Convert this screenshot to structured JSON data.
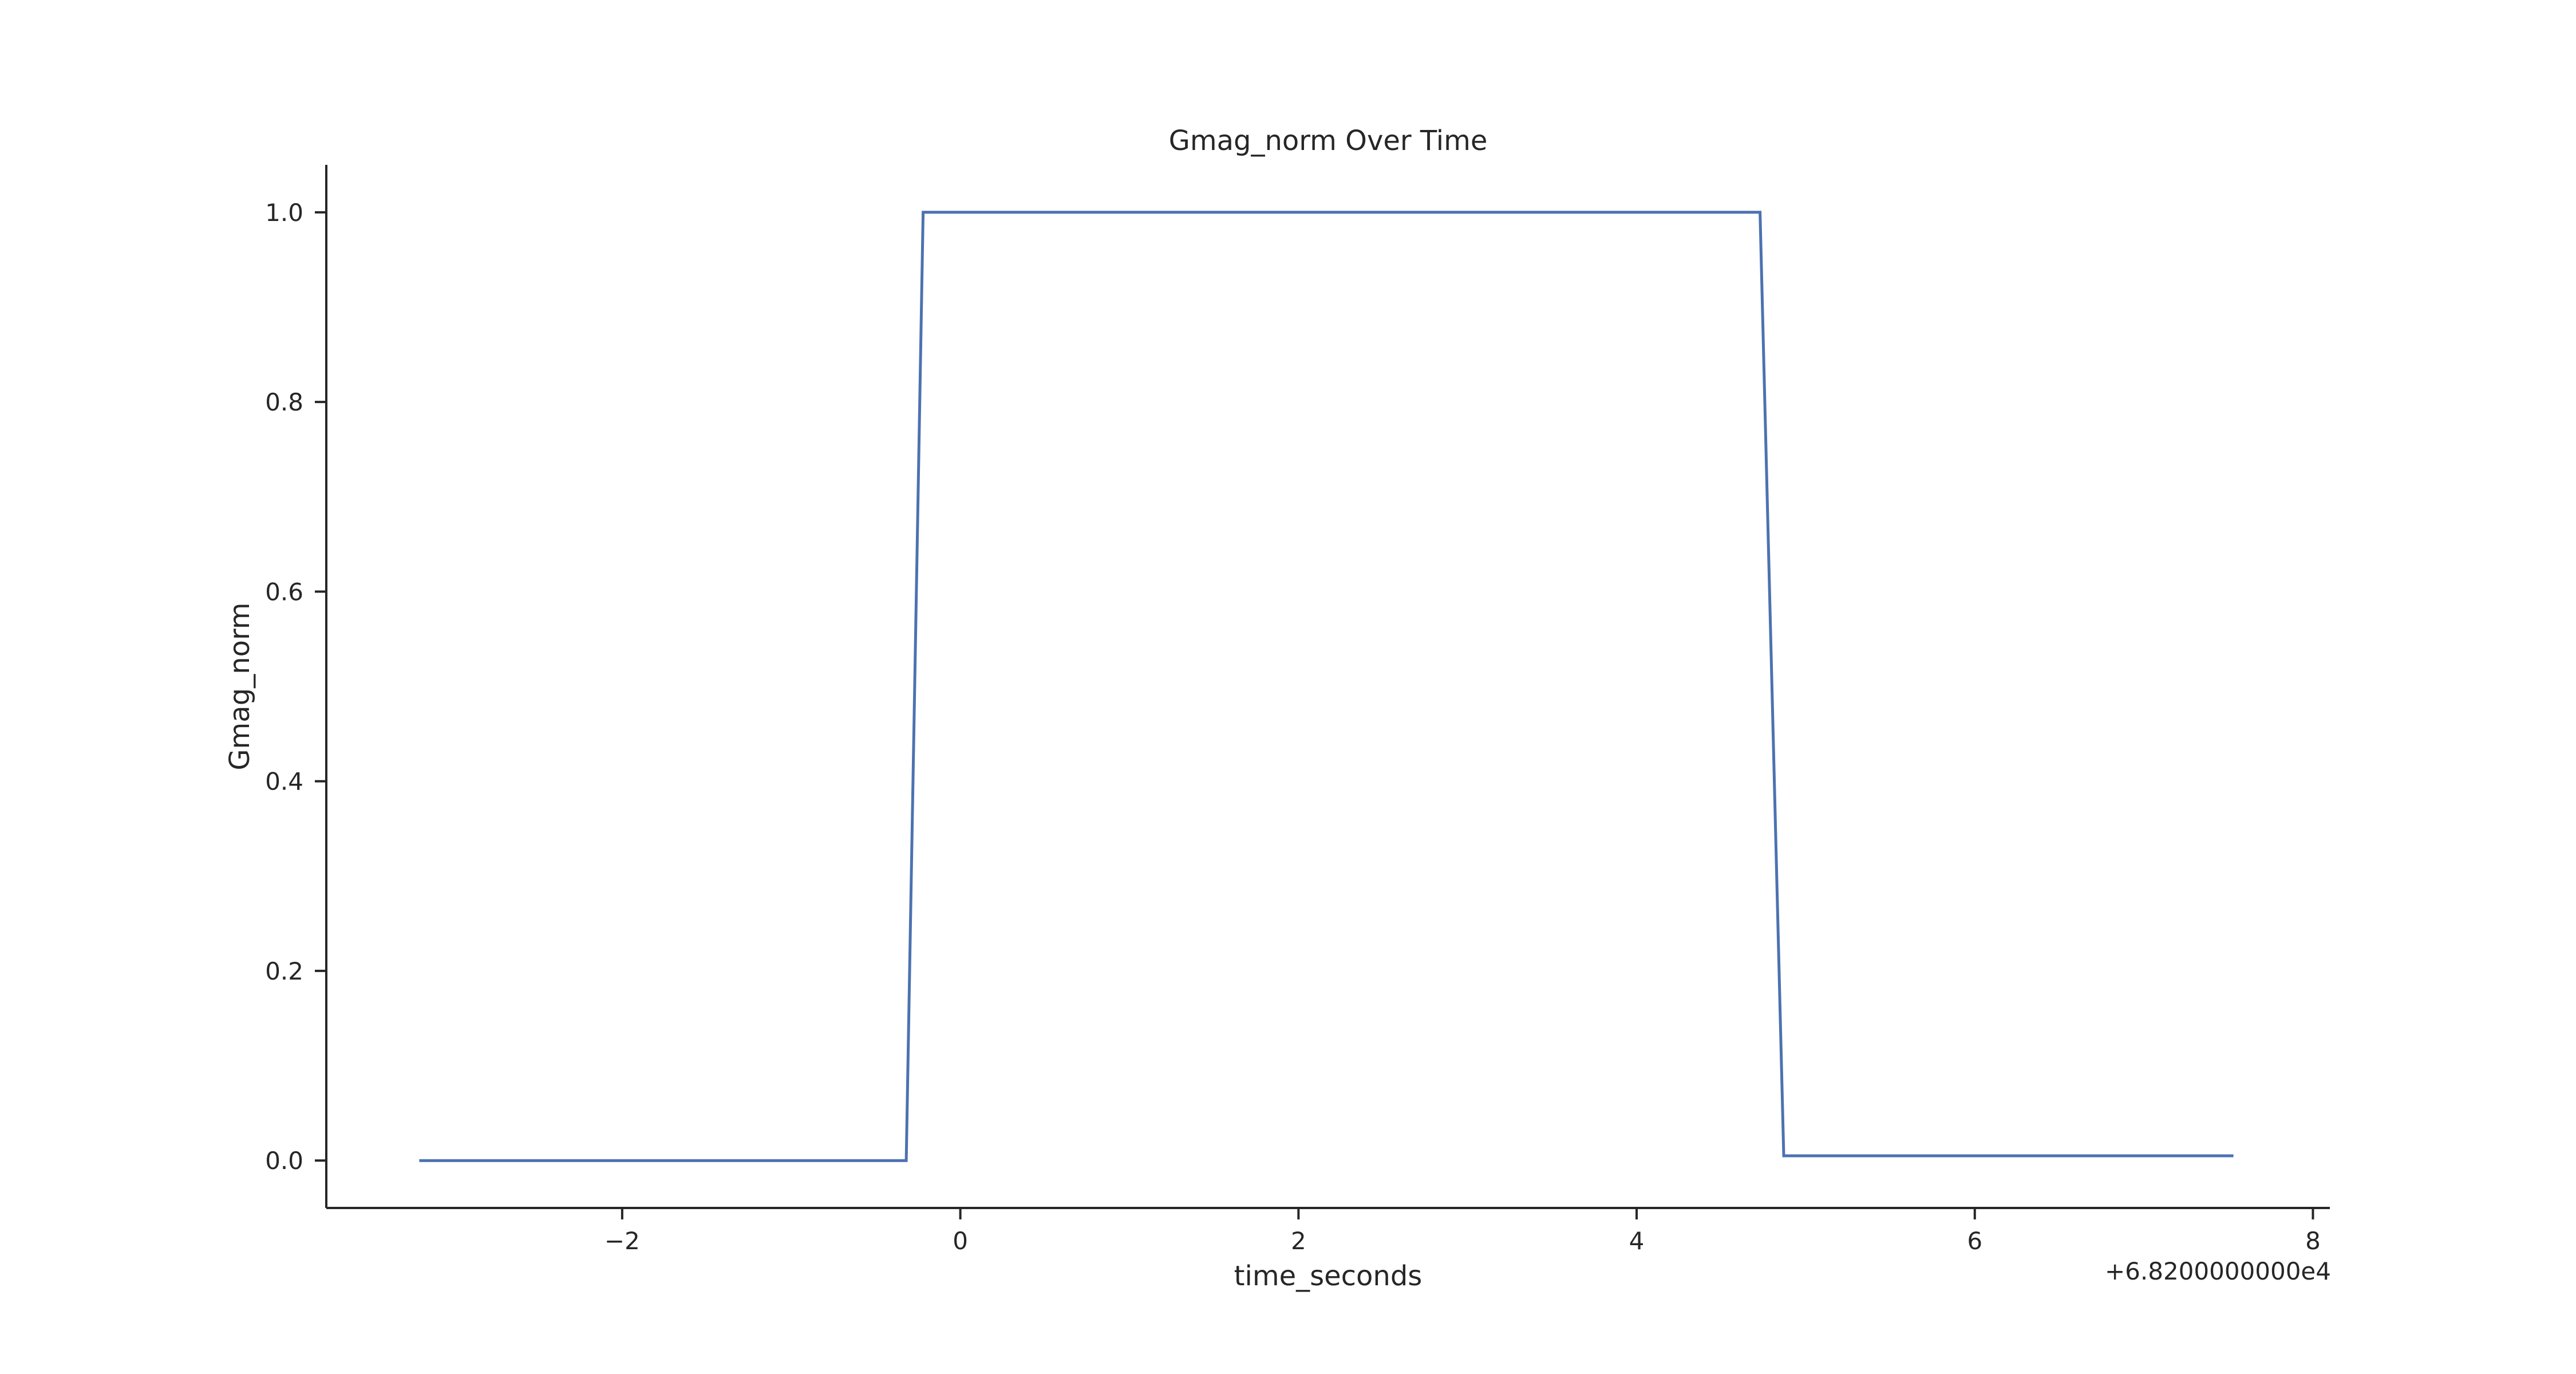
{
  "chart_data": {
    "type": "line",
    "title": "Gmag_norm Over Time",
    "xlabel": "time_seconds",
    "ylabel": "Gmag_norm",
    "x_offset_label": "+6.8200000000e4",
    "xlim": [
      -3.75,
      8.1
    ],
    "ylim": [
      -0.05,
      1.05
    ],
    "x_ticks": [
      -2,
      0,
      2,
      4,
      6,
      8
    ],
    "x_tick_labels": [
      "−2",
      "0",
      "2",
      "4",
      "6",
      "8"
    ],
    "y_ticks": [
      0.0,
      0.2,
      0.4,
      0.6,
      0.8,
      1.0
    ],
    "y_tick_labels": [
      "0.0",
      "0.2",
      "0.4",
      "0.6",
      "0.8",
      "1.0"
    ],
    "grid": false,
    "series": [
      {
        "color": "#4c72b0",
        "x": [
          -3.2,
          -0.32,
          -0.22,
          4.73,
          4.87,
          7.53
        ],
        "y": [
          0.0,
          0.0,
          1.0,
          1.0,
          0.005,
          0.005
        ]
      }
    ]
  }
}
